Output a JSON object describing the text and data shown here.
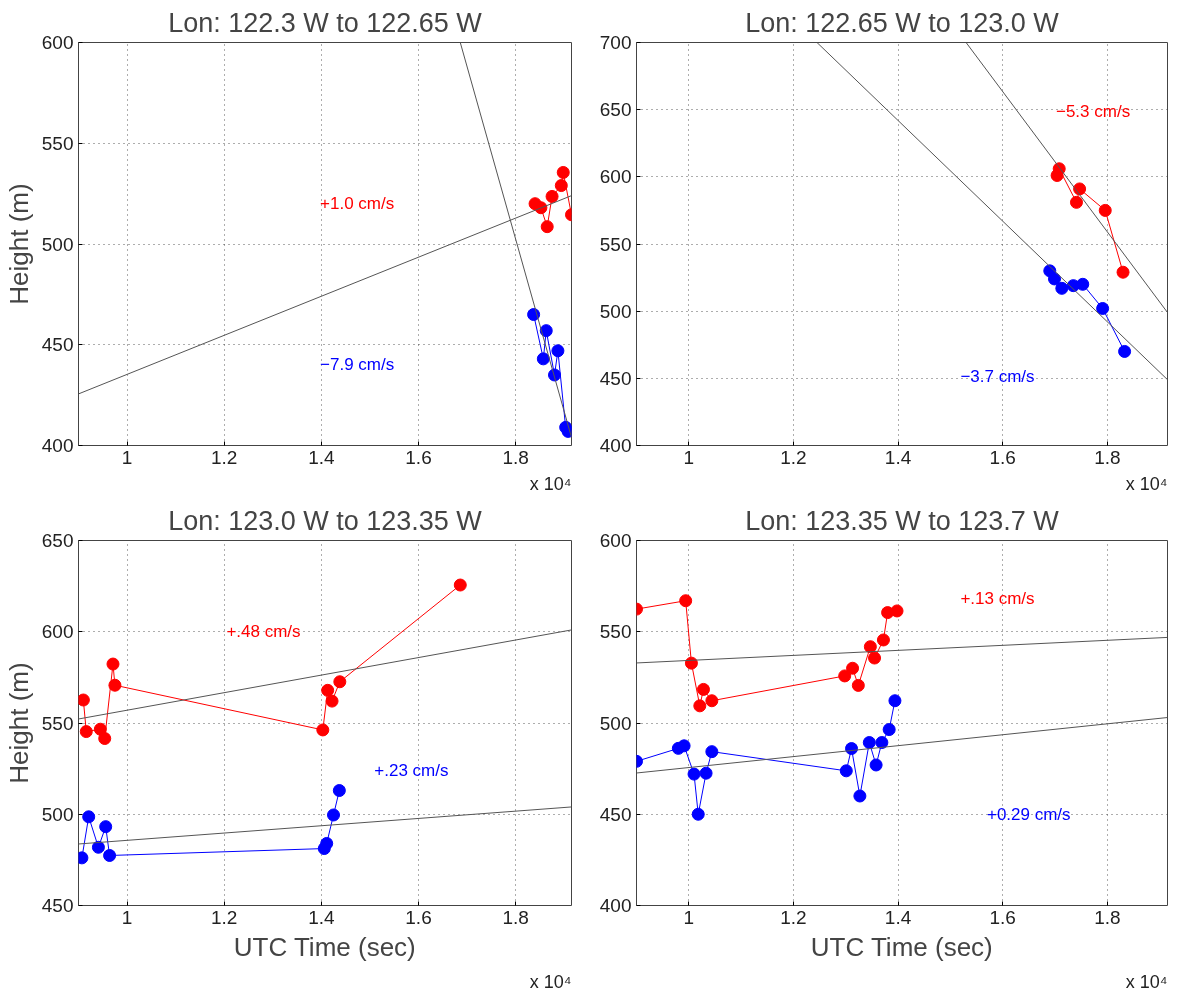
{
  "chart_data": [
    {
      "type": "line",
      "title": "Lon: 122.3 W to 122.65 W",
      "ylabel": "Height (m)",
      "xlim": [
        0.9,
        1.915
      ],
      "ylim": [
        400,
        600
      ],
      "xticks": [
        1,
        1.2,
        1.4,
        1.6,
        1.8
      ],
      "yticks": [
        400,
        450,
        500,
        550,
        600
      ],
      "grid": true,
      "marker": "circle",
      "annotations": [
        "+1.0 cm/s",
        "−7.9 cm/s",
        "x 10⁴"
      ],
      "series": [
        {
          "color": "#ff0000",
          "x": [
            1.84,
            1.852,
            1.865,
            1.875,
            1.894,
            1.898,
            1.915
          ],
          "values": [
            520,
            518,
            508.6,
            523.6,
            529,
            535.5,
            514.5
          ]
        },
        {
          "color": "#0000ff",
          "x": [
            1.837,
            1.857,
            1.863,
            1.88,
            1.887,
            1.903,
            1.908
          ],
          "values": [
            465,
            443,
            457,
            435,
            447,
            409,
            407
          ]
        },
        {
          "color": "#555555",
          "marker": "none",
          "x": [
            0.9,
            1.915
          ],
          "values": [
            425.6,
            524
          ]
        },
        {
          "color": "#555555",
          "marker": "none",
          "x": [
            1.686,
            1.915
          ],
          "values": [
            600,
            404
          ]
        }
      ]
    },
    {
      "type": "line",
      "title": "Lon: 122.65 W to 123.0 W",
      "xlim": [
        0.9,
        1.915
      ],
      "ylim": [
        400,
        700
      ],
      "xticks": [
        1,
        1.2,
        1.4,
        1.6,
        1.8
      ],
      "yticks": [
        400,
        450,
        500,
        550,
        600,
        650,
        700
      ],
      "grid": true,
      "marker": "circle",
      "annotations": [
        "−5.3 cm/s",
        "−3.7 cm/s",
        "x 10⁴"
      ],
      "series": [
        {
          "color": "#ff0000",
          "x": [
            1.704,
            1.708,
            1.741,
            1.747,
            1.796,
            1.83
          ],
          "values": [
            601,
            606,
            581,
            591,
            575,
            529
          ]
        },
        {
          "color": "#0000ff",
          "x": [
            1.69,
            1.699,
            1.713,
            1.735,
            1.753,
            1.791,
            1.833
          ],
          "values": [
            530,
            524,
            517,
            519,
            520,
            502,
            470
          ]
        },
        {
          "color": "#555555",
          "marker": "none",
          "x": [
            1.53,
            1.915
          ],
          "values": [
            700,
            499
          ]
        },
        {
          "color": "#555555",
          "marker": "none",
          "x": [
            1.245,
            1.915
          ],
          "values": [
            700,
            449
          ]
        }
      ]
    },
    {
      "type": "line",
      "title": "Lon: 123.0 W to 123.35 W",
      "xlabel": "UTC Time (sec)",
      "ylabel": "Height (m)",
      "xlim": [
        0.9,
        1.915
      ],
      "ylim": [
        450,
        650
      ],
      "xticks": [
        1,
        1.2,
        1.4,
        1.6,
        1.8
      ],
      "yticks": [
        450,
        500,
        550,
        600,
        650
      ],
      "grid": true,
      "marker": "circle",
      "annotations": [
        "+.48 cm/s",
        "+.23 cm/s",
        "x 10⁴"
      ],
      "series": [
        {
          "color": "#ff0000",
          "x": [
            0.91,
            0.916,
            0.945,
            0.954,
            0.971,
            0.975,
            1.403,
            1.413,
            1.422,
            1.438,
            1.686
          ],
          "values": [
            562.6,
            545.3,
            546.6,
            541.5,
            582.3,
            570.7,
            546.2,
            567.9,
            562,
            572.6,
            625.6
          ]
        },
        {
          "color": "#0000ff",
          "x": [
            0.907,
            0.921,
            0.941,
            0.956,
            0.964,
            1.406,
            1.411,
            1.425,
            1.437
          ],
          "values": [
            476.1,
            498.6,
            481.9,
            493.2,
            477.4,
            481.2,
            484,
            499.6,
            513
          ]
        },
        {
          "color": "#555555",
          "marker": "none",
          "x": [
            0.9,
            1.915
          ],
          "values": [
            552.2,
            601
          ]
        },
        {
          "color": "#555555",
          "marker": "none",
          "x": [
            0.9,
            1.915
          ],
          "values": [
            483.7,
            504
          ]
        }
      ]
    },
    {
      "type": "line",
      "title": "Lon: 123.35 W to 123.7 W",
      "xlabel": "UTC Time (sec)",
      "xlim": [
        0.9,
        1.915
      ],
      "ylim": [
        400,
        600
      ],
      "xticks": [
        1,
        1.2,
        1.4,
        1.6,
        1.8
      ],
      "yticks": [
        400,
        450,
        500,
        550,
        600
      ],
      "grid": true,
      "marker": "circle",
      "annotations": [
        "+.13 cm/s",
        "+0.29 cm/s",
        "x 10⁴"
      ],
      "series": [
        {
          "color": "#ff0000",
          "x": [
            0.9,
            0.994,
            1.005,
            1.021,
            1.028,
            1.044,
            1.298,
            1.313,
            1.324,
            1.347,
            1.355,
            1.372,
            1.38,
            1.398
          ],
          "values": [
            562.4,
            567,
            532.8,
            509.4,
            518.4,
            512.2,
            525.8,
            530,
            520.6,
            541.8,
            535.6,
            545.5,
            560.5,
            561.4
          ]
        },
        {
          "color": "#0000ff",
          "x": [
            0.9,
            0.98,
            0.991,
            1.01,
            1.018,
            1.033,
            1.044,
            1.301,
            1.311,
            1.327,
            1.345,
            1.358,
            1.369,
            1.383,
            1.394
          ],
          "values": [
            479,
            486.1,
            487.5,
            472,
            450,
            472.5,
            484.3,
            473.8,
            486,
            460,
            489.3,
            477,
            489.3,
            496.4,
            512.2
          ]
        },
        {
          "color": "#555555",
          "marker": "none",
          "x": [
            0.9,
            1.915
          ],
          "values": [
            532.9,
            546.9
          ]
        },
        {
          "color": "#555555",
          "marker": "none",
          "x": [
            0.9,
            1.915
          ],
          "values": [
            472.6,
            503
          ]
        }
      ]
    }
  ]
}
